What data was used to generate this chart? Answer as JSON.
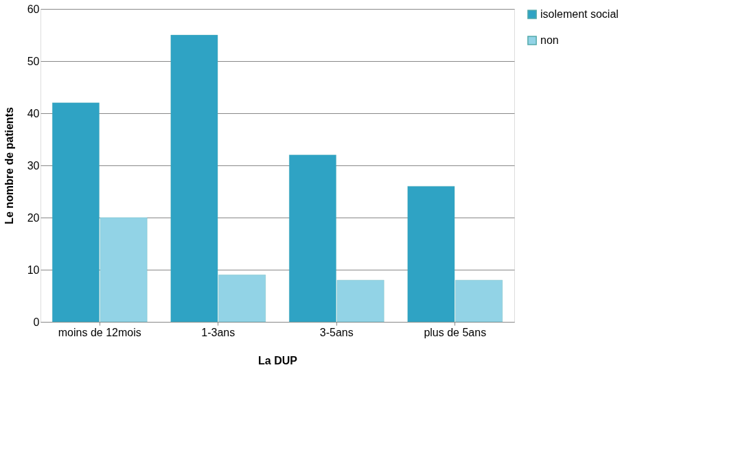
{
  "chart_data": {
    "type": "bar",
    "xlabel": "La DUP",
    "ylabel": "Le nombre de patients",
    "categories": [
      "moins de 12mois",
      "1-3ans",
      "3-5ans",
      "plus de 5ans"
    ],
    "series": [
      {
        "name": "isolement social",
        "color": "#2fa3c4",
        "values": [
          42,
          55,
          32,
          26
        ]
      },
      {
        "name": "non",
        "color": "#92d3e6",
        "values": [
          20,
          9,
          8,
          8
        ]
      }
    ],
    "ylim": [
      0,
      60
    ],
    "yticks": [
      0,
      10,
      20,
      30,
      40,
      50,
      60
    ],
    "grid": "y",
    "legend": "right"
  }
}
